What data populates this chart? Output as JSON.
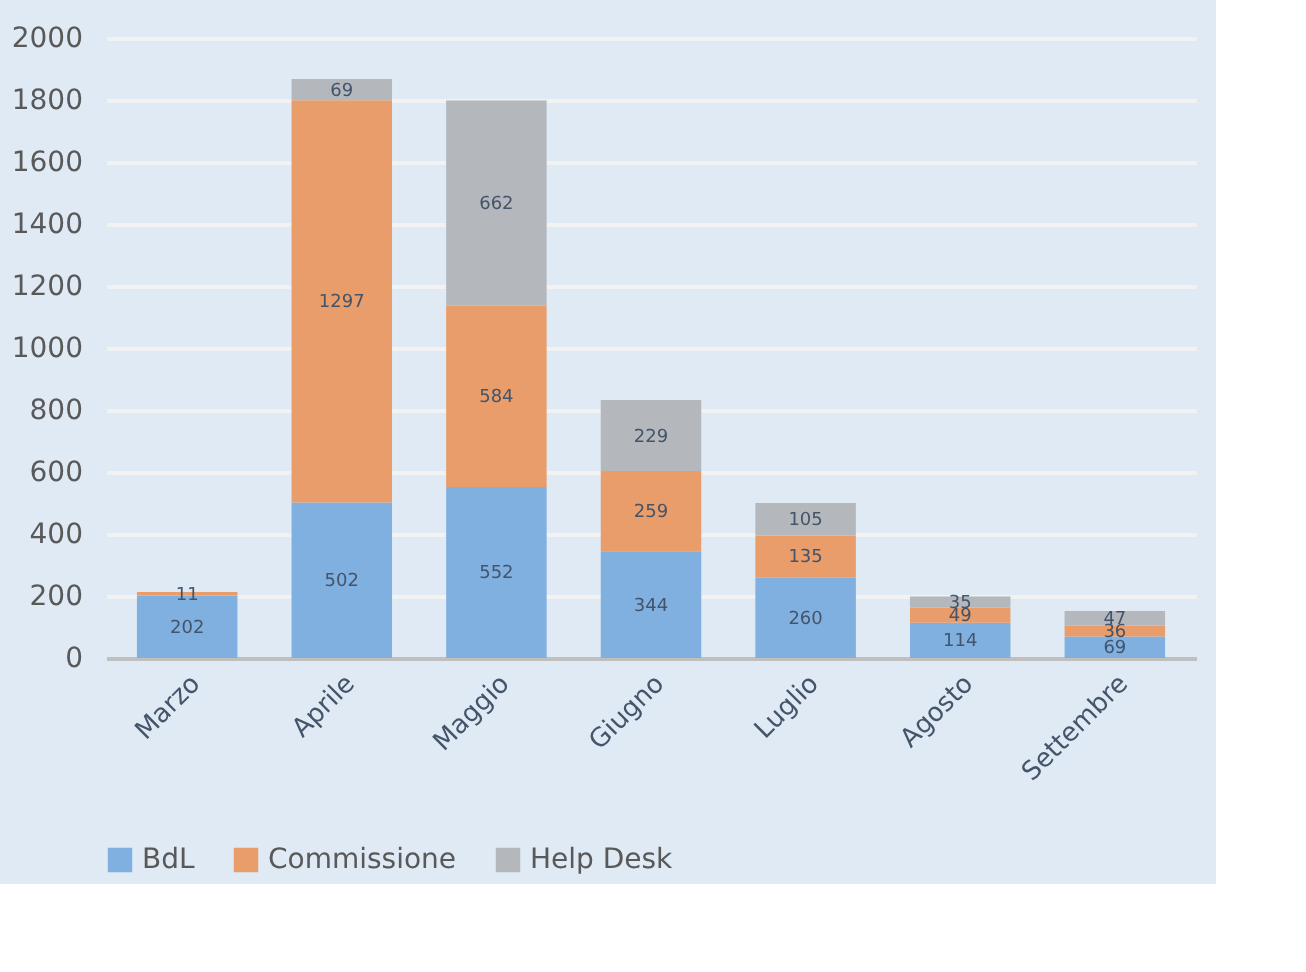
{
  "chart_data": {
    "type": "bar",
    "stacked": true,
    "data_labels": true,
    "legend": "bottom",
    "grid": "y",
    "categories": [
      "Marzo",
      "Aprile",
      "Maggio",
      "Giugno",
      "Luglio",
      "Agosto",
      "Settembre"
    ],
    "series": [
      {
        "name": "BdL",
        "color": "#7fb0e0",
        "values": [
          202,
          502,
          552,
          344,
          260,
          114,
          69
        ]
      },
      {
        "name": "Commissione",
        "color": "#e89d6a",
        "values": [
          11,
          1297,
          584,
          259,
          135,
          49,
          36
        ]
      },
      {
        "name": "Help Desk",
        "color": "#b4b8bd",
        "values": [
          null,
          69,
          662,
          229,
          105,
          35,
          47
        ]
      }
    ],
    "ylim": [
      0,
      2000
    ],
    "yticks": [
      0,
      200,
      400,
      600,
      800,
      1000,
      1200,
      1400,
      1600,
      1800,
      2000
    ]
  }
}
